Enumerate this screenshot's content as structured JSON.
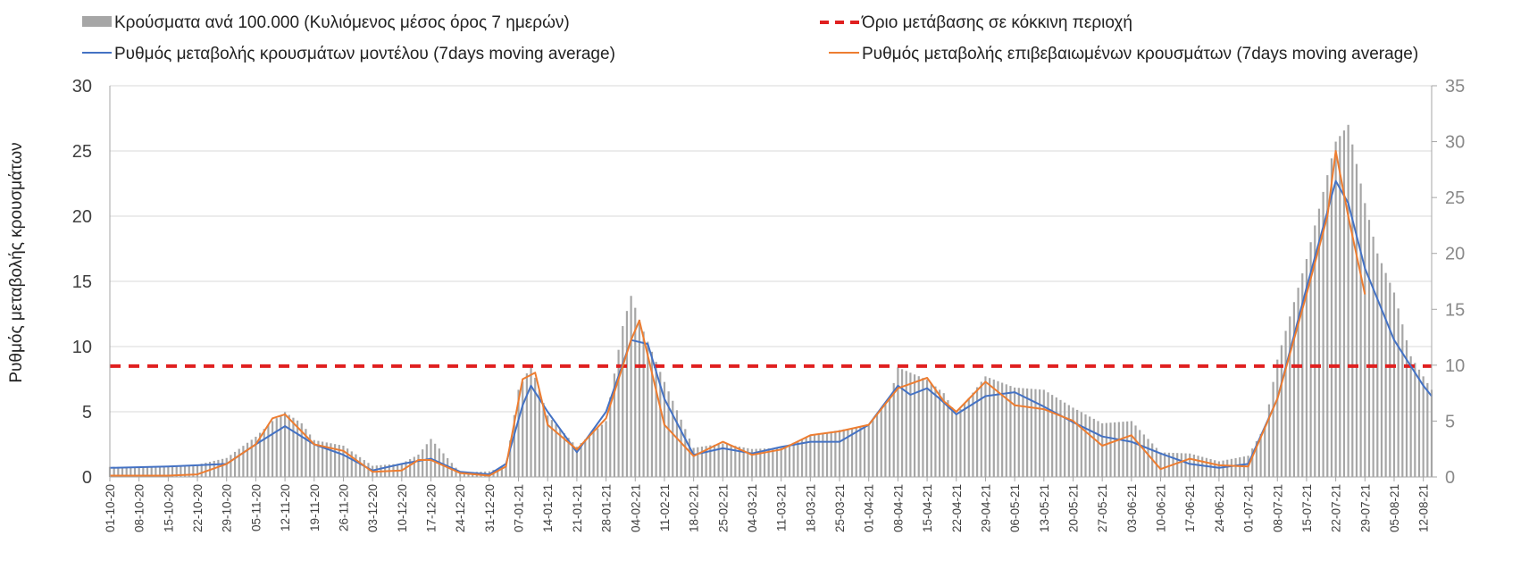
{
  "chart_data": {
    "type": "bar+line",
    "title": "",
    "legend": {
      "placement": "top",
      "entries": [
        {
          "key": "cases",
          "label": "Κρούσματα ανά 100.000 (Κυλιόμενος μέσος όρος 7 ημερών)",
          "style": "bar",
          "color": "#a6a6a6"
        },
        {
          "key": "threshold",
          "label": "Όριο μετάβασης σε κόκκινη περιοχή",
          "style": "dashed",
          "color": "#e02020"
        },
        {
          "key": "model",
          "label": "Ρυθμός μεταβολής κρουσμάτων μοντέλου (7days moving average)",
          "style": "line",
          "color": "#4472c4"
        },
        {
          "key": "confirmed",
          "label": "Ρυθμός μεταβολής επιβεβαιωμένων κρουσμάτων (7days moving average)",
          "style": "line",
          "color": "#ed7d31"
        }
      ]
    },
    "ylabel": "Ρυθμός μεταβολής κρουσμάτων",
    "y_left": {
      "min": 0,
      "max": 30,
      "ticks": [
        0,
        5,
        10,
        15,
        20,
        25,
        30
      ]
    },
    "y_right": {
      "min": 0,
      "max": 35,
      "ticks": [
        0,
        5,
        10,
        15,
        20,
        25,
        30,
        35
      ]
    },
    "grid": "horizontal",
    "x_tick_labels": [
      "01-10-20",
      "08-10-20",
      "15-10-20",
      "22-10-20",
      "29-10-20",
      "05-11-20",
      "12-11-20",
      "19-11-20",
      "26-11-20",
      "03-12-20",
      "10-12-20",
      "17-12-20",
      "24-12-20",
      "31-12-20",
      "07-01-21",
      "14-01-21",
      "21-01-21",
      "28-01-21",
      "04-02-21",
      "11-02-21",
      "18-02-21",
      "25-02-21",
      "04-03-21",
      "11-03-21",
      "18-03-21",
      "25-03-21",
      "01-04-21",
      "08-04-21",
      "15-04-21",
      "22-04-21",
      "29-04-21",
      "06-05-21",
      "13-05-21",
      "20-05-21",
      "27-05-21",
      "03-06-21",
      "10-06-21",
      "17-06-21",
      "24-06-21",
      "01-07-21",
      "08-07-21",
      "15-07-21",
      "22-07-21",
      "29-07-21",
      "05-08-21",
      "12-08-21"
    ],
    "x_start": "01-10-20",
    "x_end": "14-08-21",
    "series": [
      {
        "name": "Κρούσματα ανά 100.000 (Κυλιόμενος μέσος όρος 7 ημερών)",
        "axis": "right",
        "type": "bar",
        "x": [
          "01-10-20",
          "08-10-20",
          "15-10-20",
          "22-10-20",
          "29-10-20",
          "05-11-20",
          "09-11-20",
          "12-11-20",
          "16-11-20",
          "19-11-20",
          "26-11-20",
          "03-12-20",
          "10-12-20",
          "14-12-20",
          "17-12-20",
          "24-12-20",
          "31-12-20",
          "04-01-21",
          "07-01-21",
          "10-01-21",
          "14-01-21",
          "21-01-21",
          "28-01-21",
          "01-02-21",
          "03-02-21",
          "06-02-21",
          "11-02-21",
          "18-02-21",
          "25-02-21",
          "04-03-21",
          "11-03-21",
          "18-03-21",
          "25-03-21",
          "01-04-21",
          "06-04-21",
          "08-04-21",
          "15-04-21",
          "19-04-21",
          "22-04-21",
          "29-04-21",
          "06-05-21",
          "13-05-21",
          "20-05-21",
          "27-05-21",
          "03-06-21",
          "10-06-21",
          "17-06-21",
          "24-06-21",
          "01-07-21",
          "05-07-21",
          "08-07-21",
          "15-07-21",
          "19-07-21",
          "22-07-21",
          "25-07-21",
          "29-07-21",
          "01-08-21",
          "05-08-21",
          "09-08-21",
          "12-08-21",
          "14-08-21"
        ],
        "values": [
          0.9,
          0.9,
          1.0,
          1.1,
          1.7,
          3.6,
          5.0,
          5.8,
          4.8,
          3.3,
          2.8,
          1.0,
          1.2,
          2.0,
          3.4,
          0.4,
          0.5,
          1.0,
          7.8,
          10.0,
          5.5,
          2.7,
          5.0,
          13.5,
          16.2,
          13.0,
          8.5,
          2.6,
          3.0,
          2.5,
          2.6,
          3.7,
          4.2,
          4.6,
          7.0,
          9.8,
          8.7,
          7.5,
          5.6,
          9.0,
          8.0,
          7.8,
          6.2,
          4.8,
          5.0,
          2.2,
          2.1,
          1.4,
          1.9,
          4.5,
          10.5,
          19.5,
          25.5,
          30.0,
          31.5,
          24.5,
          20.0,
          16.5,
          10.8,
          9.0,
          7.8
        ]
      },
      {
        "name": "Όριο μετάβασης σε κόκκινη περιοχή",
        "axis": "left",
        "type": "line",
        "x": [
          "01-10-20",
          "14-08-21"
        ],
        "values": [
          8.5,
          8.5
        ]
      },
      {
        "name": "Ρυθμός μεταβολής κρουσμάτων μοντέλου (7days moving average)",
        "axis": "left",
        "type": "line",
        "x": [
          "01-10-20",
          "15-10-20",
          "22-10-20",
          "29-10-20",
          "05-11-20",
          "12-11-20",
          "19-11-20",
          "26-11-20",
          "03-12-20",
          "10-12-20",
          "17-12-20",
          "24-12-20",
          "31-12-20",
          "04-01-21",
          "08-01-21",
          "10-01-21",
          "14-01-21",
          "21-01-21",
          "28-01-21",
          "03-02-21",
          "07-02-21",
          "11-02-21",
          "18-02-21",
          "25-02-21",
          "04-03-21",
          "11-03-21",
          "18-03-21",
          "25-03-21",
          "01-04-21",
          "08-04-21",
          "11-04-21",
          "15-04-21",
          "18-04-21",
          "22-04-21",
          "29-04-21",
          "06-05-21",
          "13-05-21",
          "20-05-21",
          "27-05-21",
          "03-06-21",
          "10-06-21",
          "17-06-21",
          "24-06-21",
          "01-07-21",
          "08-07-21",
          "15-07-21",
          "22-07-21",
          "25-07-21",
          "29-07-21",
          "05-08-21",
          "12-08-21",
          "14-08-21"
        ],
        "values": [
          0.7,
          0.8,
          0.9,
          1.0,
          2.5,
          3.9,
          2.5,
          1.7,
          0.5,
          1.0,
          1.4,
          0.4,
          0.2,
          1.0,
          5.5,
          7.0,
          5.0,
          1.9,
          5.0,
          10.5,
          10.2,
          6.0,
          1.7,
          2.2,
          1.8,
          2.3,
          2.7,
          2.7,
          4.0,
          7.0,
          6.3,
          6.8,
          6.0,
          4.8,
          6.2,
          6.5,
          5.4,
          4.2,
          3.1,
          2.7,
          1.8,
          1.0,
          0.7,
          1.0,
          6.0,
          14.5,
          22.7,
          21.0,
          16.0,
          10.5,
          7.0,
          6.2
        ]
      },
      {
        "name": "Ρυθμός μεταβολής επιβεβαιωμένων κρουσμάτων (7days moving average)",
        "axis": "left",
        "type": "line",
        "x": [
          "01-10-20",
          "15-10-20",
          "22-10-20",
          "29-10-20",
          "05-11-20",
          "09-11-20",
          "12-11-20",
          "19-11-20",
          "26-11-20",
          "03-12-20",
          "10-12-20",
          "14-12-20",
          "17-12-20",
          "24-12-20",
          "31-12-20",
          "04-01-21",
          "08-01-21",
          "11-01-21",
          "14-01-21",
          "21-01-21",
          "28-01-21",
          "03-02-21",
          "05-02-21",
          "11-02-21",
          "18-02-21",
          "25-02-21",
          "04-03-21",
          "11-03-21",
          "18-03-21",
          "25-03-21",
          "01-04-21",
          "08-04-21",
          "15-04-21",
          "19-04-21",
          "22-04-21",
          "29-04-21",
          "06-05-21",
          "13-05-21",
          "20-05-21",
          "27-05-21",
          "03-06-21",
          "10-06-21",
          "17-06-21",
          "24-06-21",
          "01-07-21",
          "08-07-21",
          "15-07-21",
          "20-07-21",
          "22-07-21",
          "25-07-21",
          "29-07-21"
        ],
        "values": [
          0.1,
          0.1,
          0.2,
          1.0,
          2.5,
          4.5,
          4.8,
          2.5,
          2.0,
          0.4,
          0.5,
          1.3,
          1.3,
          0.3,
          0.1,
          0.8,
          7.5,
          8.0,
          4.0,
          2.1,
          4.5,
          10.5,
          12.0,
          4.0,
          1.6,
          2.7,
          1.7,
          2.1,
          3.2,
          3.5,
          4.0,
          6.8,
          7.6,
          5.8,
          5.0,
          7.3,
          5.5,
          5.2,
          4.3,
          2.4,
          3.2,
          0.6,
          1.4,
          0.9,
          0.8,
          6.0,
          14.0,
          20.0,
          25.0,
          20.0,
          14.0
        ]
      }
    ]
  }
}
